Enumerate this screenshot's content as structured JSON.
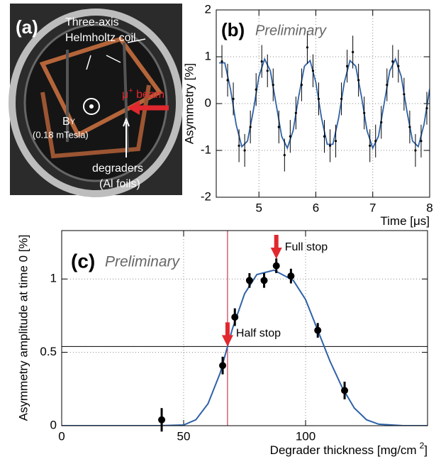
{
  "photo": {
    "label": "(a)",
    "coil_line1": "Three-axis",
    "coil_line2": "Helmholtz coil",
    "beam_mu": "μ",
    "beam_sup": "+",
    "beam_rest": " beam",
    "field_b": "B",
    "field_sub": "Y",
    "field_value": "(0.18 mTesla)",
    "degrader_line1": "degraders",
    "degrader_line2": "(Al foils)"
  },
  "chart_data": [
    {
      "type": "scatter",
      "label": "(b)",
      "annotation": "Preliminary",
      "ylabel": "Asymmetry [%]",
      "xlabel": "Time [μs]",
      "xlim": [
        4.25,
        8
      ],
      "ylim": [
        -2,
        2
      ],
      "xticks": [
        5,
        6,
        7,
        8
      ],
      "yticks": [
        -2,
        -1,
        0,
        1,
        2
      ],
      "grid": true,
      "points": {
        "color": "#000000",
        "x": [
          4.35,
          4.45,
          4.55,
          4.65,
          4.75,
          4.85,
          4.95,
          5.05,
          5.15,
          5.25,
          5.35,
          5.45,
          5.55,
          5.65,
          5.75,
          5.85,
          5.95,
          6.05,
          6.15,
          6.25,
          6.35,
          6.45,
          6.55,
          6.65,
          6.75,
          6.85,
          6.95,
          7.05,
          7.15,
          7.25,
          7.35,
          7.45,
          7.55,
          7.65,
          7.75,
          7.85,
          7.95
        ],
        "values": [
          0.9,
          0.5,
          0.1,
          -0.9,
          -1.0,
          -0.5,
          0.3,
          0.9,
          0.7,
          0.4,
          -0.5,
          -1.1,
          -0.7,
          -0.2,
          0.4,
          1.2,
          0.7,
          0.1,
          -0.7,
          -0.9,
          -0.8,
          0.1,
          0.8,
          1.1,
          0.5,
          -0.2,
          -0.9,
          -0.8,
          -0.4,
          0.4,
          0.9,
          0.8,
          0.2,
          -0.5,
          -1.0,
          -0.8,
          -0.1
        ],
        "errors": [
          0.35,
          0.35,
          0.35,
          0.35,
          0.35,
          0.35,
          0.35,
          0.35,
          0.35,
          0.35,
          0.35,
          0.35,
          0.35,
          0.35,
          0.35,
          0.35,
          0.35,
          0.35,
          0.35,
          0.35,
          0.35,
          0.35,
          0.35,
          0.35,
          0.35,
          0.35,
          0.35,
          0.35,
          0.35,
          0.35,
          0.35,
          0.35,
          0.35,
          0.35,
          0.35,
          0.35,
          0.35
        ]
      },
      "fit": {
        "color": "#2e62a8",
        "x": [
          4.3,
          4.4,
          4.5,
          4.6,
          4.7,
          4.8,
          4.9,
          5.0,
          5.1,
          5.2,
          5.3,
          5.4,
          5.5,
          5.6,
          5.7,
          5.8,
          5.9,
          6.0,
          6.1,
          6.2,
          6.3,
          6.4,
          6.5,
          6.6,
          6.7,
          6.8,
          6.9,
          7.0,
          7.1,
          7.2,
          7.3,
          7.4,
          7.5,
          7.6,
          7.7,
          7.8,
          7.9,
          8.0
        ],
        "values": [
          0.87,
          0.87,
          0.31,
          -0.45,
          -0.92,
          -0.8,
          -0.16,
          0.58,
          0.95,
          0.7,
          0.0,
          -0.7,
          -0.95,
          -0.58,
          0.16,
          0.8,
          0.92,
          0.45,
          -0.31,
          -0.87,
          -0.87,
          -0.31,
          0.45,
          0.92,
          0.8,
          0.16,
          -0.58,
          -0.95,
          -0.7,
          0.0,
          0.7,
          0.95,
          0.58,
          -0.16,
          -0.8,
          -0.92,
          -0.45,
          0.31
        ]
      }
    },
    {
      "type": "scatter",
      "label": "(c)",
      "annotation": "Preliminary",
      "ylabel": "Asymmetry amplitude at time 0 [%]",
      "xlabel": "Degrader thickness [mg/cm",
      "xlabel_sup": "2",
      "xlabel_end": "]",
      "xlim": [
        0,
        150
      ],
      "ylim": [
        0,
        1.33
      ],
      "xticks": [
        0,
        50,
        100
      ],
      "yticks": [
        0,
        0.5,
        1
      ],
      "grid": true,
      "points": {
        "color": "#000000",
        "x": [
          41,
          66,
          71,
          77,
          83,
          88,
          94,
          105,
          116
        ],
        "values": [
          0.04,
          0.41,
          0.74,
          0.99,
          0.99,
          1.09,
          1.02,
          0.65,
          0.24
        ],
        "errors": [
          0.08,
          0.06,
          0.06,
          0.05,
          0.05,
          0.05,
          0.05,
          0.05,
          0.06
        ]
      },
      "fit": {
        "color": "#2e62a8",
        "x": [
          0,
          40,
          50,
          55,
          60,
          65,
          68,
          70,
          75,
          80,
          87,
          95,
          100,
          105,
          110,
          115,
          120,
          125,
          130,
          140,
          150
        ],
        "values": [
          0,
          0,
          0.005,
          0.04,
          0.15,
          0.36,
          0.54,
          0.66,
          0.9,
          1.03,
          1.06,
          0.99,
          0.86,
          0.65,
          0.44,
          0.26,
          0.12,
          0.04,
          0.01,
          0,
          0
        ]
      },
      "half_stop": {
        "label": "Half stop",
        "x": 68,
        "y": 0.54,
        "line_color": "#c8102e",
        "level_color": "#000000"
      },
      "full_stop": {
        "label": "Full stop",
        "x": 88
      },
      "arrow_color": "#e0282e"
    }
  ]
}
